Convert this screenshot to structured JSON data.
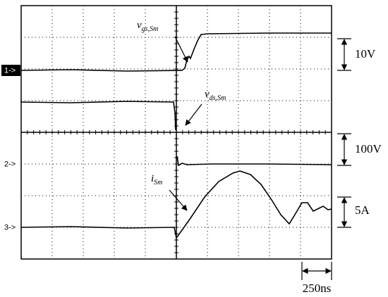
{
  "channels": [
    {
      "marker": "1->"
    },
    {
      "marker": "2->"
    },
    {
      "marker": "3->"
    }
  ],
  "scales": {
    "ch1": "10V",
    "ch2": "100V",
    "ch3": "5A",
    "time": "250ns"
  },
  "labels": {
    "vgs": {
      "symbol": "v",
      "subscript": "gs,Sm"
    },
    "vds": {
      "symbol": "v",
      "subscript": "ds,Sm"
    },
    "is": {
      "symbol": "i",
      "subscript": "Sm"
    }
  }
}
